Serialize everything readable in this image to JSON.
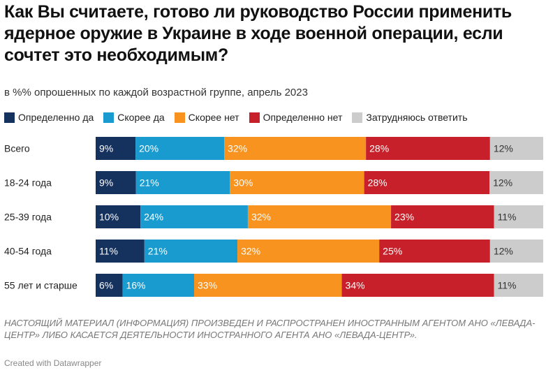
{
  "title": "Как Вы считаете, готово ли руководство России применить ядерное оружие в Украине в ходе военной операции, если сочтет это необходимым?",
  "subtitle": "в %% опрошенных по каждой возрастной группе, апрель 2023",
  "note": "НАСТОЯЩИЙ МАТЕРИАЛ (ИНФОРМАЦИЯ) ПРОИЗВЕДЕН И РАСПРОСТРАНЕН ИНОСТРАННЫМ АГЕНТОМ АНО «ЛЕВАДА-ЦЕНТР» ЛИБО КАСАЕТСЯ ДЕЯТЕЛЬНОСТИ ИНОСТРАННОГО АГЕНТА АНО «ЛЕВАДА-ЦЕНТР».",
  "credit": "Created with Datawrapper",
  "chart_data": {
    "type": "bar",
    "stacked": true,
    "orientation": "horizontal",
    "unit": "%",
    "categories": [
      "Всего",
      "18-24 года",
      "25-39 года",
      "40-54 года",
      "55 лет и старше"
    ],
    "series": [
      {
        "name": "Определенно да",
        "color": "#15325f",
        "label_color": "#ffffff",
        "values": [
          9,
          9,
          10,
          11,
          6
        ]
      },
      {
        "name": "Скорее да",
        "color": "#1a9bd0",
        "label_color": "#ffffff",
        "values": [
          20,
          21,
          24,
          21,
          16
        ]
      },
      {
        "name": "Скорее нет",
        "color": "#f7931e",
        "label_color": "#ffffff",
        "values": [
          32,
          30,
          32,
          32,
          33
        ]
      },
      {
        "name": "Определенно нет",
        "color": "#c8202a",
        "label_color": "#ffffff",
        "values": [
          28,
          28,
          23,
          25,
          34
        ]
      },
      {
        "name": "Затрудняюсь ответить",
        "color": "#cccccc",
        "label_color": "#333333",
        "values": [
          12,
          12,
          11,
          12,
          11
        ]
      }
    ],
    "grid": false,
    "legend_position": "top"
  }
}
